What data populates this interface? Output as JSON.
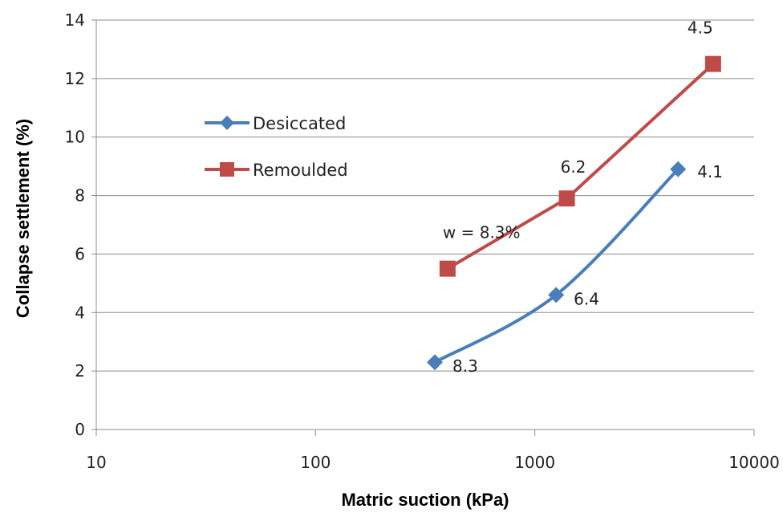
{
  "chart_data": {
    "type": "line",
    "xscale": "log",
    "xlim": [
      10,
      10000
    ],
    "ylim": [
      0,
      14
    ],
    "xticks": [
      10,
      100,
      1000,
      10000
    ],
    "yticks": [
      0,
      2,
      4,
      6,
      8,
      10,
      12,
      14
    ],
    "xlabel": "Matric suction (kPa)",
    "ylabel": "Collapse settlement (%)",
    "grid": "horizontal",
    "legend_position": "upper-left",
    "series": [
      {
        "name": "Desiccated",
        "color": "#4a7ebb",
        "marker": "diamond",
        "points": [
          {
            "x": 350,
            "y": 2.3,
            "label": "8.3"
          },
          {
            "x": 1250,
            "y": 4.6,
            "label": "6.4"
          },
          {
            "x": 4500,
            "y": 8.9,
            "label": "4.1"
          }
        ]
      },
      {
        "name": "Remoulded",
        "color": "#be4b48",
        "marker": "square",
        "points": [
          {
            "x": 400,
            "y": 5.5,
            "label": "w = 8.3%"
          },
          {
            "x": 1400,
            "y": 7.9,
            "label": "6.2"
          },
          {
            "x": 6500,
            "y": 12.5,
            "label": "4.5"
          }
        ]
      }
    ]
  }
}
